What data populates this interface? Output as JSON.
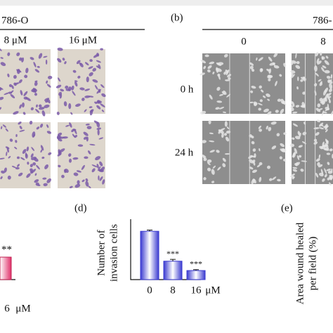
{
  "panel_a": {
    "cell_line": "786-O",
    "doses": [
      "8 μM",
      "16 μM"
    ]
  },
  "panel_b": {
    "label": "(b)",
    "cell_line": "786-",
    "doses": [
      "0",
      "8"
    ],
    "times": [
      "0 h",
      "24 h"
    ]
  },
  "panel_c": {
    "significance": "**",
    "dose": "6",
    "unit": "μM"
  },
  "panel_e": {
    "label": "(e)",
    "y_label_lines": [
      "Area wound healed",
      "per field (%)"
    ]
  },
  "chart_data": {
    "type": "bar",
    "label": "(d)",
    "y_label_lines": [
      "Number of",
      "invasion cells"
    ],
    "categories": [
      "0",
      "8",
      "16"
    ],
    "unit": "μM",
    "values": [
      320,
      122,
      60
    ],
    "errors": [
      8,
      12,
      6
    ],
    "significance": [
      null,
      "***",
      "***"
    ],
    "color": "#3a3ad0",
    "ylim": [
      0,
      400
    ]
  }
}
